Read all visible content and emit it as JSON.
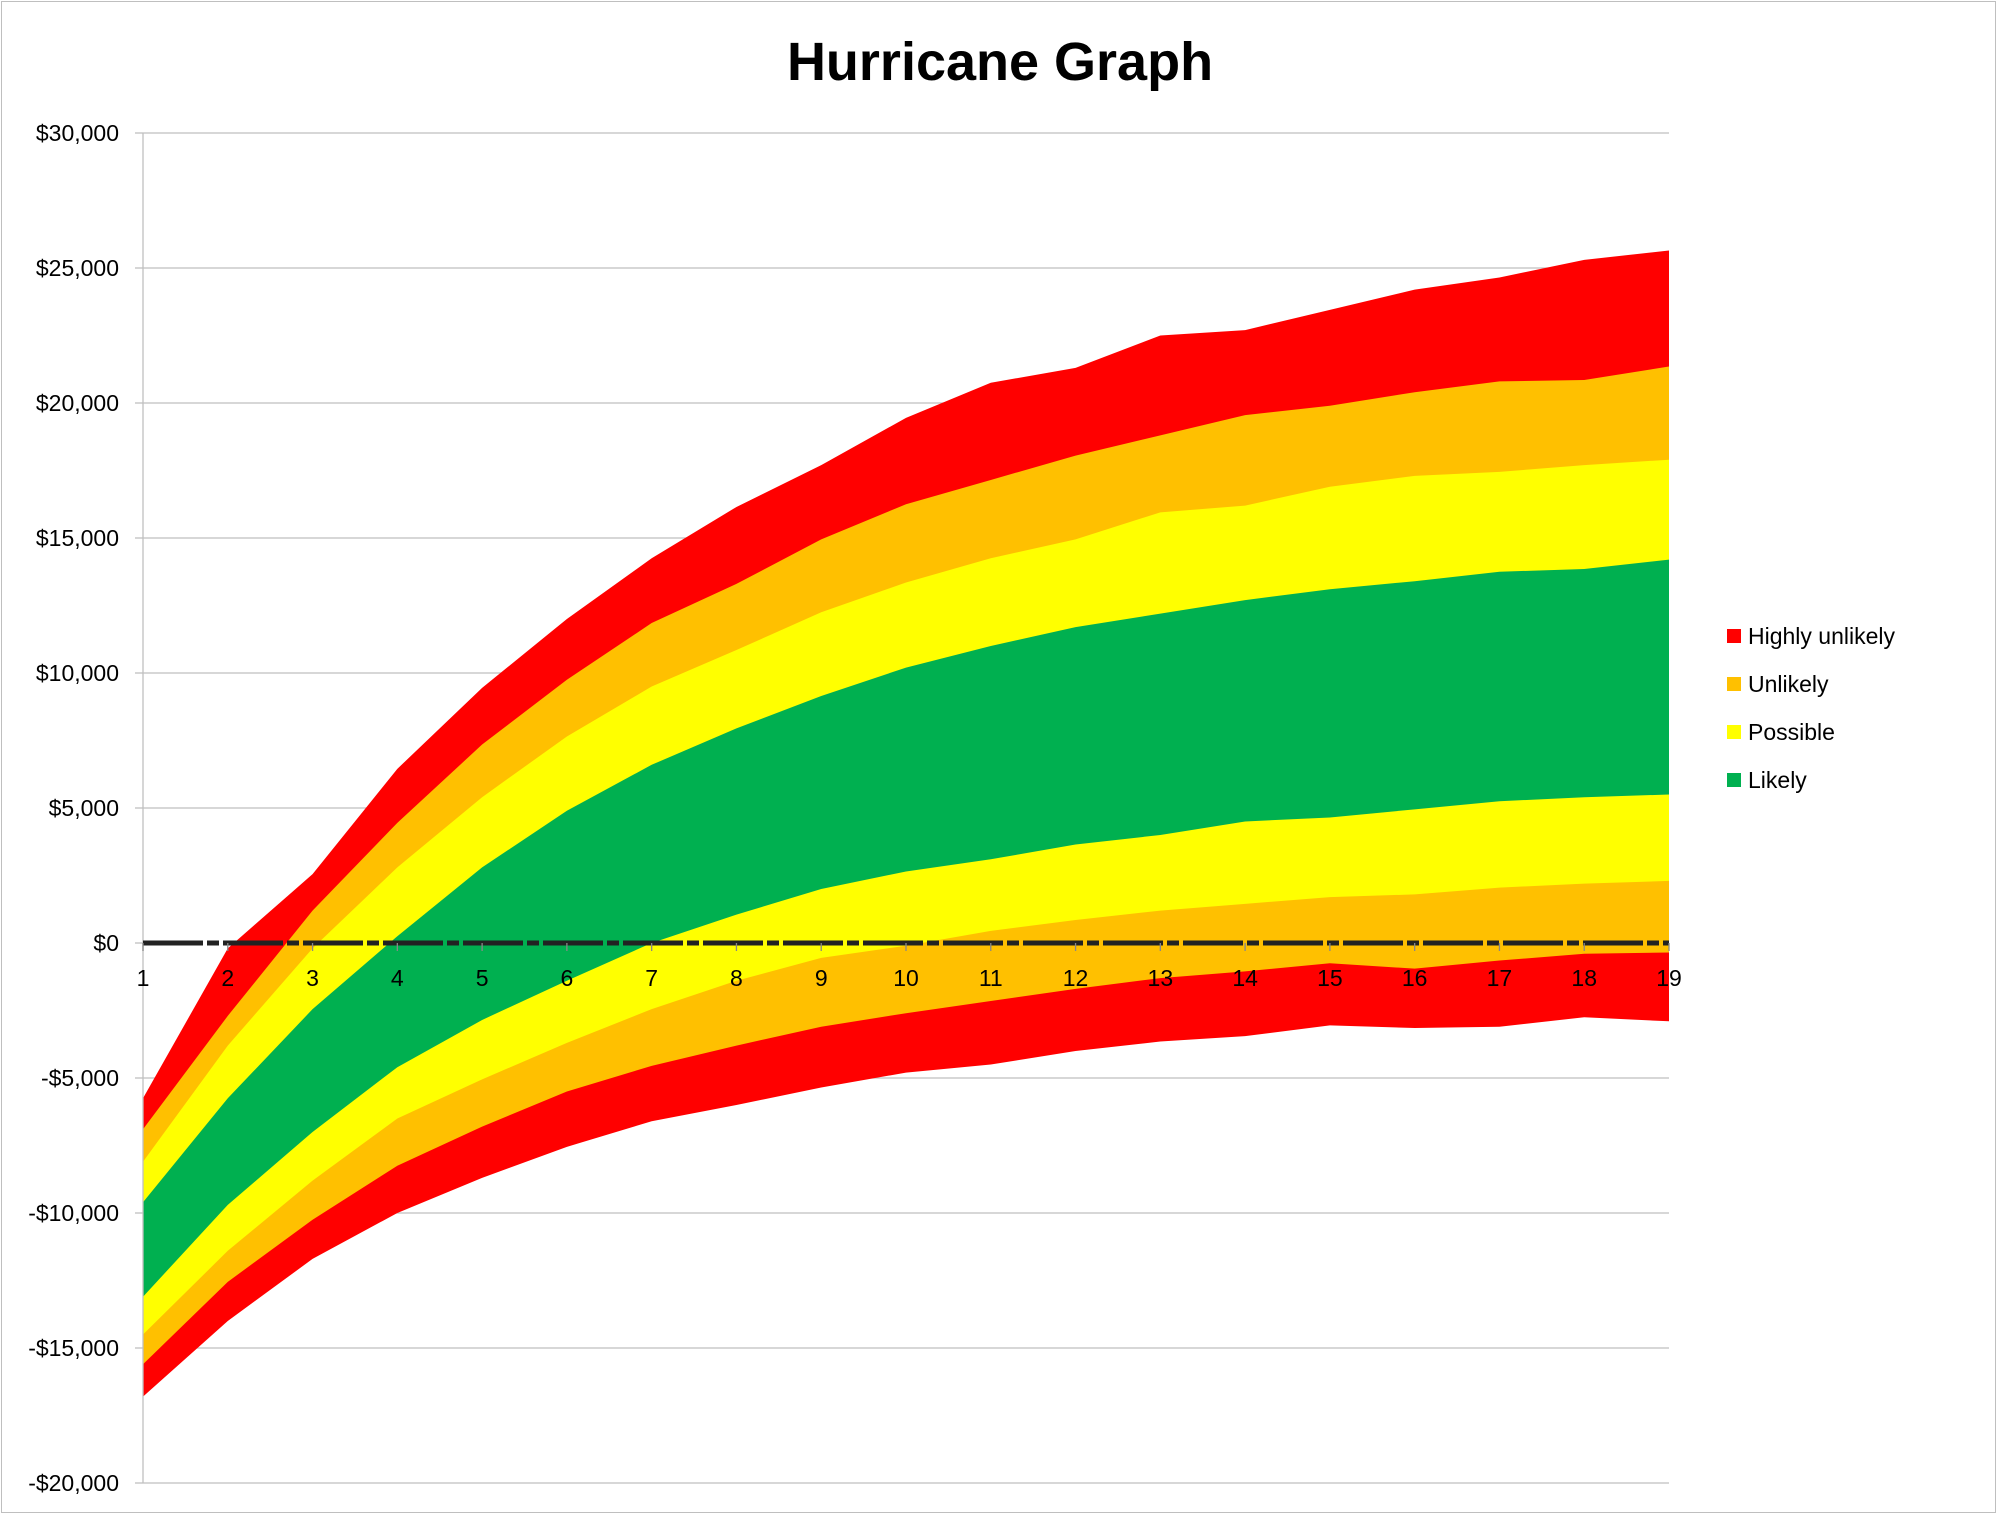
{
  "chart_data": {
    "type": "area",
    "title": "Hurricane Graph",
    "xlabel": "",
    "ylabel": "",
    "x": [
      1,
      2,
      3,
      4,
      5,
      6,
      7,
      8,
      9,
      10,
      11,
      12,
      13,
      14,
      15,
      16,
      17,
      18,
      19
    ],
    "ylim": [
      -20000,
      30000
    ],
    "yticks": [
      30000,
      25000,
      20000,
      15000,
      10000,
      5000,
      0,
      -5000,
      -10000,
      -15000,
      -20000
    ],
    "ytick_labels": [
      "$30,000",
      "$25,000",
      "$20,000",
      "$15,000",
      "$10,000",
      "$5,000",
      "$0",
      "-$5,000",
      "-$10,000",
      "-$15,000",
      "-$20,000"
    ],
    "grid": true,
    "legend_position": "right",
    "series": [
      {
        "name": "Highly unlikely",
        "color": "#ff0000",
        "upper": [
          -5750,
          -200,
          2550,
          6450,
          9450,
          12000,
          14250,
          16150,
          17700,
          19450,
          20750,
          21300,
          22500,
          22700,
          23450,
          24200,
          24650,
          25300,
          25650
        ],
        "lower": [
          -16800,
          -14000,
          -11700,
          -10000,
          -8700,
          -7550,
          -6600,
          -6000,
          -5350,
          -4800,
          -4500,
          -4000,
          -3650,
          -3450,
          -3050,
          -3150,
          -3100,
          -2750,
          -2900
        ]
      },
      {
        "name": "Unlikely",
        "color": "#ffc000",
        "upper": [
          -6900,
          -2700,
          1200,
          4450,
          7350,
          9750,
          11850,
          13300,
          14950,
          16250,
          17150,
          18050,
          18800,
          19550,
          19900,
          20400,
          20800,
          20850,
          21350
        ],
        "lower": [
          -15600,
          -12550,
          -10250,
          -8250,
          -6800,
          -5500,
          -4550,
          -3800,
          -3100,
          -2600,
          -2150,
          -1700,
          -1300,
          -1050,
          -750,
          -950,
          -650,
          -400,
          -350
        ]
      },
      {
        "name": "Possible",
        "color": "#ffff00",
        "upper": [
          -8100,
          -3800,
          -200,
          2800,
          5400,
          7650,
          9500,
          10850,
          12250,
          13350,
          14250,
          14950,
          15950,
          16200,
          16900,
          17300,
          17450,
          17700,
          17900
        ],
        "lower": [
          -14500,
          -11400,
          -8800,
          -6500,
          -5050,
          -3700,
          -2450,
          -1400,
          -550,
          -100,
          450,
          850,
          1200,
          1450,
          1700,
          1800,
          2050,
          2200,
          2300
        ]
      },
      {
        "name": "Likely",
        "color": "#00b050",
        "upper": [
          -9600,
          -5750,
          -2450,
          250,
          2800,
          4900,
          6600,
          7950,
          9150,
          10200,
          11000,
          11700,
          12200,
          12700,
          13100,
          13400,
          13750,
          13850,
          14200
        ],
        "lower": [
          -13100,
          -9700,
          -7000,
          -4600,
          -2850,
          -1400,
          0,
          1050,
          2000,
          2650,
          3100,
          3650,
          4000,
          4500,
          4650,
          4950,
          5250,
          5400,
          5500
        ]
      }
    ]
  }
}
